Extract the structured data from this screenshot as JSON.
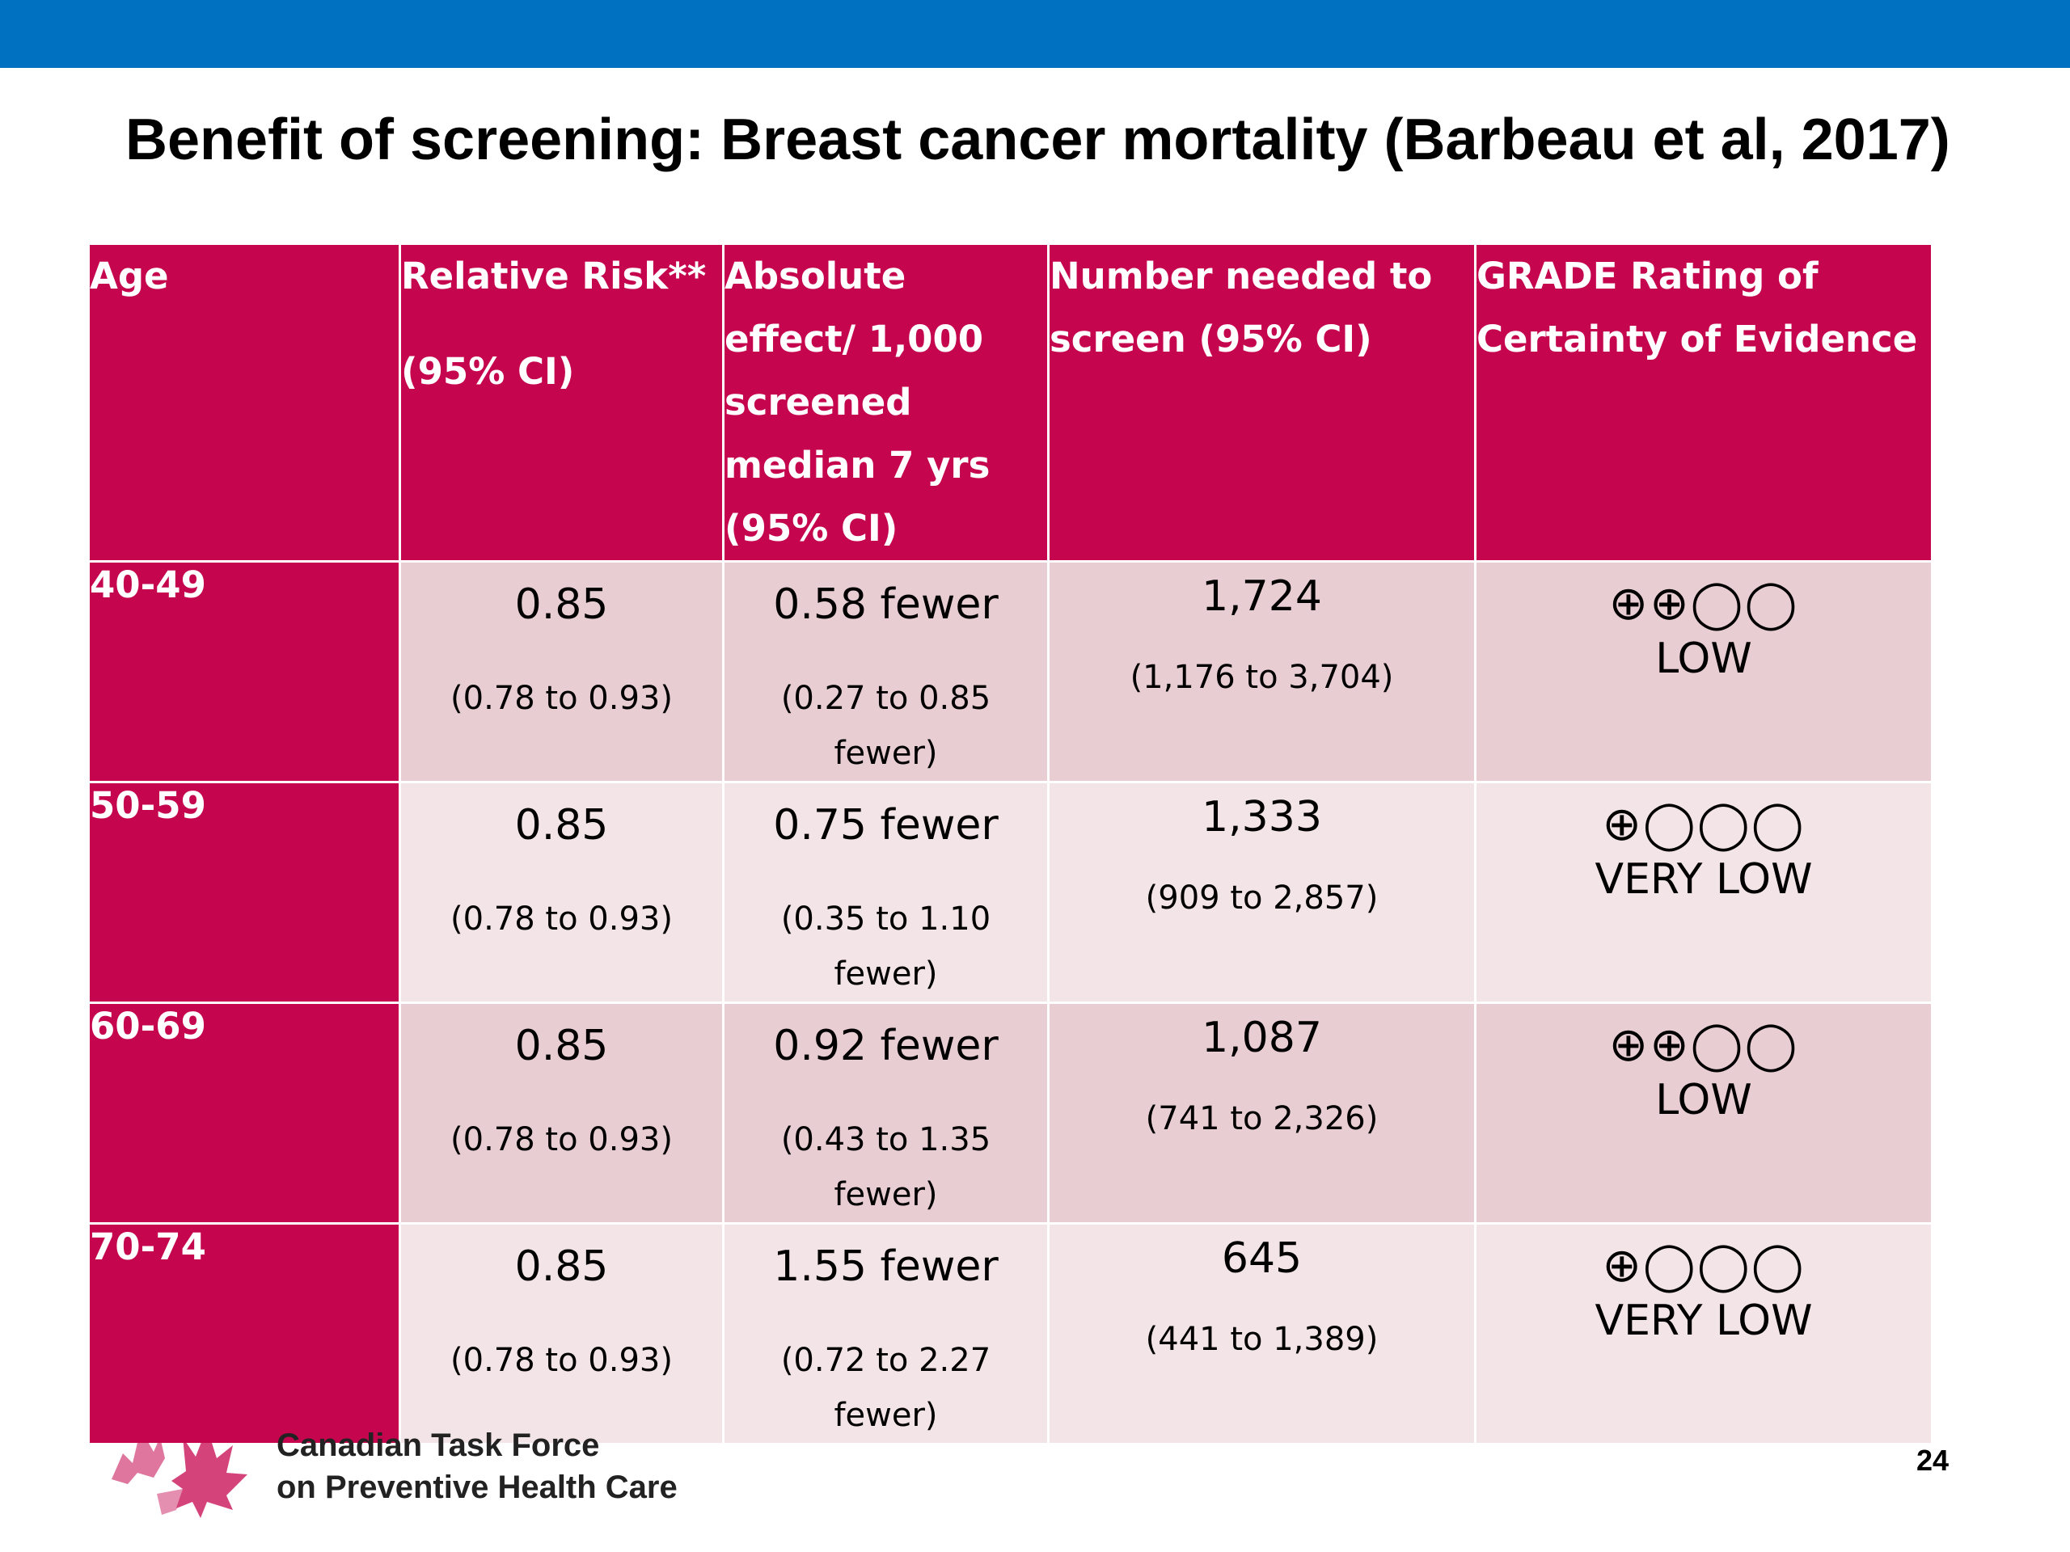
{
  "slide": {
    "title": "Benefit of screening: Breast cancer mortality (Barbeau et al, 2017)",
    "page_number": "24",
    "organization_line1": "Canadian Task Force",
    "organization_line2": "on Preventive Health Care",
    "accent_color": "#c5064f",
    "top_bar_color": "#0070c0"
  },
  "table": {
    "headers": {
      "age": "Age",
      "rr_line1": "Relative Risk**",
      "rr_line2": "(95% CI)",
      "abs_line1": "Absolute",
      "abs_line2": "effect/ 1,000",
      "abs_line3": "screened",
      "abs_line4": "median 7 yrs",
      "abs_line5": "(95% CI)",
      "nns_line1": "Number needed to",
      "nns_line2": "screen (95% CI)",
      "grade_line1": "GRADE Rating of",
      "grade_line2": "Certainty of Evidence"
    },
    "rows": [
      {
        "age": "40-49",
        "rr": "0.85",
        "rr_ci": "(0.78 to 0.93)",
        "abs": "0.58 fewer",
        "abs_ci_1": "(0.27 to 0.85",
        "abs_ci_2": "fewer)",
        "nns": "1,724",
        "nns_ci": "(1,176 to 3,704)",
        "grade_symbols": "⊕⊕◯◯",
        "grade_label": "LOW"
      },
      {
        "age": "50-59",
        "rr": "0.85",
        "rr_ci": "(0.78 to 0.93)",
        "abs": "0.75 fewer",
        "abs_ci_1": "(0.35 to 1.10",
        "abs_ci_2": "fewer)",
        "nns": "1,333",
        "nns_ci": "(909 to 2,857)",
        "grade_symbols": "⊕◯◯◯",
        "grade_label": "VERY LOW"
      },
      {
        "age": "60-69",
        "rr": "0.85",
        "rr_ci": "(0.78 to 0.93)",
        "abs": "0.92 fewer",
        "abs_ci_1": "(0.43 to 1.35",
        "abs_ci_2": "fewer)",
        "nns": "1,087",
        "nns_ci": "(741 to 2,326)",
        "grade_symbols": "⊕⊕◯◯",
        "grade_label": "LOW"
      },
      {
        "age": "70-74",
        "rr": "0.85",
        "rr_ci": "(0.78 to 0.93)",
        "abs": "1.55 fewer",
        "abs_ci_1": "(0.72 to 2.27",
        "abs_ci_2": "fewer)",
        "nns": "645",
        "nns_ci": "(441 to 1,389)",
        "grade_symbols": "⊕◯◯◯",
        "grade_label": "VERY LOW"
      }
    ]
  }
}
